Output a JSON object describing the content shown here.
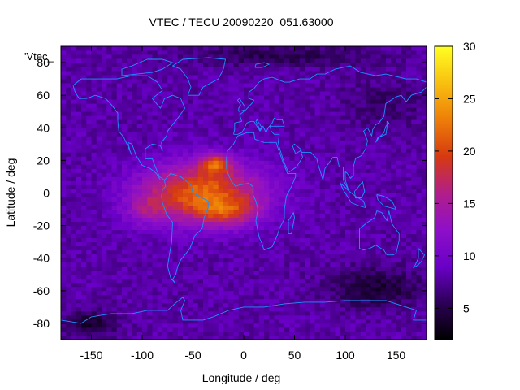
{
  "chart_data": {
    "type": "heatmap",
    "title": "VTEC / TECU 20090220_051.63000",
    "xlabel": "Longitude / deg",
    "ylabel": "Latitude / deg",
    "series_label": "'Vtec_",
    "xlim": [
      -180,
      180
    ],
    "ylim": [
      -90,
      90
    ],
    "xticks": [
      -150,
      -100,
      -50,
      0,
      50,
      100,
      150
    ],
    "yticks": [
      -80,
      -60,
      -40,
      -20,
      0,
      20,
      40,
      60,
      80
    ],
    "colorbar": {
      "min": 2,
      "max": 30,
      "ticks": [
        5,
        10,
        15,
        20,
        25,
        30
      ]
    },
    "background_tecu": 8,
    "features": [
      {
        "name": "equatorial-anomaly-main",
        "lon": -40,
        "lat": 0,
        "lon_spread": 58,
        "lat_spread": 18,
        "peak_tecu": 14
      },
      {
        "name": "anomaly-north-crest",
        "lon": -28,
        "lat": 18,
        "lon_spread": 15,
        "lat_spread": 6,
        "peak_tecu": 10
      },
      {
        "name": "anomaly-south-crest",
        "lon": -15,
        "lat": -12,
        "lon_spread": 28,
        "lat_spread": 8,
        "peak_tecu": 6
      },
      {
        "name": "anomaly-west-lobe",
        "lon": -95,
        "lat": -10,
        "lon_spread": 22,
        "lat_spread": 10,
        "peak_tecu": 4
      },
      {
        "name": "south-pacific-trough",
        "lon": 130,
        "lat": -58,
        "lon_spread": 45,
        "lat_spread": 12,
        "peak_tecu": -4
      },
      {
        "name": "antarctic-trough-west",
        "lon": -150,
        "lat": -80,
        "lon_spread": 25,
        "lat_spread": 8,
        "peak_tecu": -4
      },
      {
        "name": "arctic-trough",
        "lon": 40,
        "lat": 84,
        "lon_spread": 90,
        "lat_spread": 6,
        "peak_tecu": -3
      },
      {
        "name": "east-asia-dip",
        "lon": 140,
        "lat": 55,
        "lon_spread": 40,
        "lat_spread": 15,
        "peak_tecu": -2
      }
    ],
    "colors": {
      "colormap": [
        "#000000",
        "#2c0056",
        "#6a00c8",
        "#8e10c8",
        "#b21e8a",
        "#d63a10",
        "#ee7e08",
        "#f8c010",
        "#ffff22"
      ],
      "coastline": "#1e90ff",
      "frame": "#000000"
    }
  }
}
